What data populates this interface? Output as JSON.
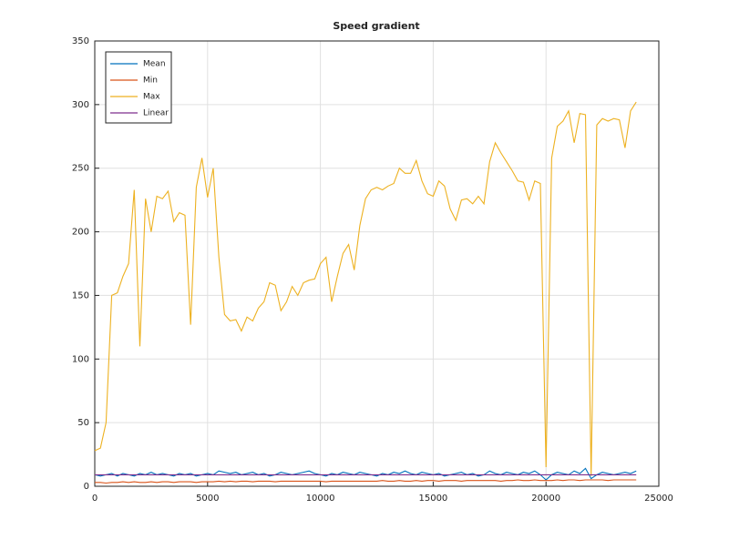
{
  "chart_data": {
    "type": "line",
    "title": "Speed gradient",
    "x": [
      0,
      250,
      500,
      750,
      1000,
      1250,
      1500,
      1750,
      2000,
      2250,
      2500,
      2750,
      3000,
      3250,
      3500,
      3750,
      4000,
      4250,
      4500,
      4750,
      5000,
      5250,
      5500,
      5750,
      6000,
      6250,
      6500,
      6750,
      7000,
      7250,
      7500,
      7750,
      8000,
      8250,
      8500,
      8750,
      9000,
      9250,
      9500,
      9750,
      10000,
      10250,
      10500,
      10750,
      11000,
      11250,
      11500,
      11750,
      12000,
      12250,
      12500,
      12750,
      13000,
      13250,
      13500,
      13750,
      14000,
      14250,
      14500,
      14750,
      15000,
      15250,
      15500,
      15750,
      16000,
      16250,
      16500,
      16750,
      17000,
      17250,
      17500,
      17750,
      18000,
      18250,
      18500,
      18750,
      19000,
      19250,
      19500,
      19750,
      20000,
      20250,
      20500,
      20750,
      21000,
      21250,
      21500,
      21750,
      22000,
      22250,
      22500,
      22750,
      23000,
      23250,
      23500,
      23750,
      24000
    ],
    "series": [
      {
        "name": "Mean",
        "color": "#0072bd",
        "values": [
          9,
          8,
          9,
          10,
          8,
          10,
          9,
          8,
          10,
          9,
          11,
          9,
          10,
          9,
          8,
          10,
          9,
          10,
          8,
          9,
          10,
          9,
          12,
          11,
          10,
          11,
          9,
          10,
          11,
          9,
          10,
          8,
          9,
          11,
          10,
          9,
          10,
          11,
          12,
          10,
          9,
          8,
          10,
          9,
          11,
          10,
          9,
          11,
          10,
          9,
          8,
          10,
          9,
          11,
          10,
          12,
          10,
          9,
          11,
          10,
          9,
          10,
          8,
          9,
          10,
          11,
          9,
          10,
          8,
          9,
          12,
          10,
          9,
          11,
          10,
          9,
          11,
          10,
          12,
          9,
          5,
          9,
          11,
          10,
          9,
          12,
          10,
          14,
          6,
          9,
          11,
          10,
          9,
          10,
          11,
          10,
          12
        ]
      },
      {
        "name": "Min",
        "color": "#d95319",
        "values": [
          3,
          3,
          2.5,
          3,
          3,
          3.5,
          3,
          3.5,
          3,
          3,
          3.5,
          3,
          3.5,
          3.5,
          3,
          3.5,
          3.5,
          3.5,
          3,
          3.5,
          3.5,
          3.5,
          4,
          3.5,
          4,
          3.5,
          4,
          4,
          3.5,
          4,
          4,
          4,
          3.5,
          4,
          4,
          4,
          4,
          4,
          4,
          4,
          4,
          3.5,
          4,
          4,
          4,
          4,
          4,
          4,
          4,
          4,
          4,
          4.5,
          4,
          4,
          4.5,
          4,
          4,
          4.5,
          4,
          4.5,
          4.5,
          4,
          4.5,
          4.5,
          4.5,
          4,
          4.5,
          4.5,
          4.5,
          4.5,
          4.5,
          4.5,
          4,
          4.5,
          4.5,
          5,
          4.5,
          4.5,
          5,
          4.5,
          4.5,
          4.5,
          5,
          4.5,
          5,
          5,
          4.5,
          5,
          5,
          5,
          5,
          4.5,
          5,
          5,
          5,
          5,
          5
        ]
      },
      {
        "name": "Max",
        "color": "#edb120",
        "values": [
          28,
          30,
          50,
          150,
          152,
          165,
          175,
          233,
          110,
          226,
          200,
          228,
          226,
          232,
          208,
          215,
          213,
          127,
          235,
          258,
          227,
          250,
          180,
          135,
          130,
          131,
          122,
          133,
          130,
          140,
          145,
          160,
          158,
          138,
          145,
          157,
          150,
          160,
          162,
          163,
          175,
          180,
          145,
          165,
          183,
          190,
          170,
          205,
          226,
          233,
          235,
          233,
          236,
          238,
          250,
          246,
          246,
          256,
          240,
          230,
          228,
          240,
          236,
          218,
          209,
          225,
          226,
          222,
          228,
          222,
          255,
          270,
          262,
          255,
          248,
          240,
          239,
          225,
          240,
          238,
          15,
          258,
          283,
          287,
          295,
          270,
          293,
          292,
          8,
          284,
          289,
          287,
          289,
          288,
          266,
          295,
          302
        ]
      },
      {
        "name": "Linear",
        "color": "#7e2f8e",
        "values": [
          9,
          9,
          9,
          9,
          9,
          9,
          9,
          9,
          9,
          9,
          9,
          9,
          9,
          9,
          9,
          9,
          9,
          9,
          9,
          9,
          9,
          9,
          9,
          9,
          9,
          9,
          9,
          9,
          9,
          9,
          9,
          9,
          9,
          9,
          9,
          9,
          9,
          9,
          9,
          9,
          9,
          9,
          9,
          9,
          9,
          9,
          9,
          9,
          9,
          9,
          9,
          9,
          9,
          9,
          9,
          9,
          9,
          9,
          9,
          9,
          9,
          9,
          9,
          9,
          9,
          9,
          9,
          9,
          9,
          9,
          9,
          9,
          9,
          9,
          9,
          9,
          9,
          9,
          9,
          9,
          9,
          9,
          9,
          9,
          9,
          9,
          9,
          9,
          9,
          9,
          9,
          9,
          9,
          9,
          9,
          9,
          9
        ]
      }
    ],
    "xlim": [
      0,
      25000
    ],
    "xticks": [
      0,
      5000,
      10000,
      15000,
      20000,
      25000
    ],
    "ylim": [
      0,
      350
    ],
    "yticks": [
      0,
      50,
      100,
      150,
      200,
      250,
      300,
      350
    ],
    "grid": true,
    "legend": "northwest"
  }
}
